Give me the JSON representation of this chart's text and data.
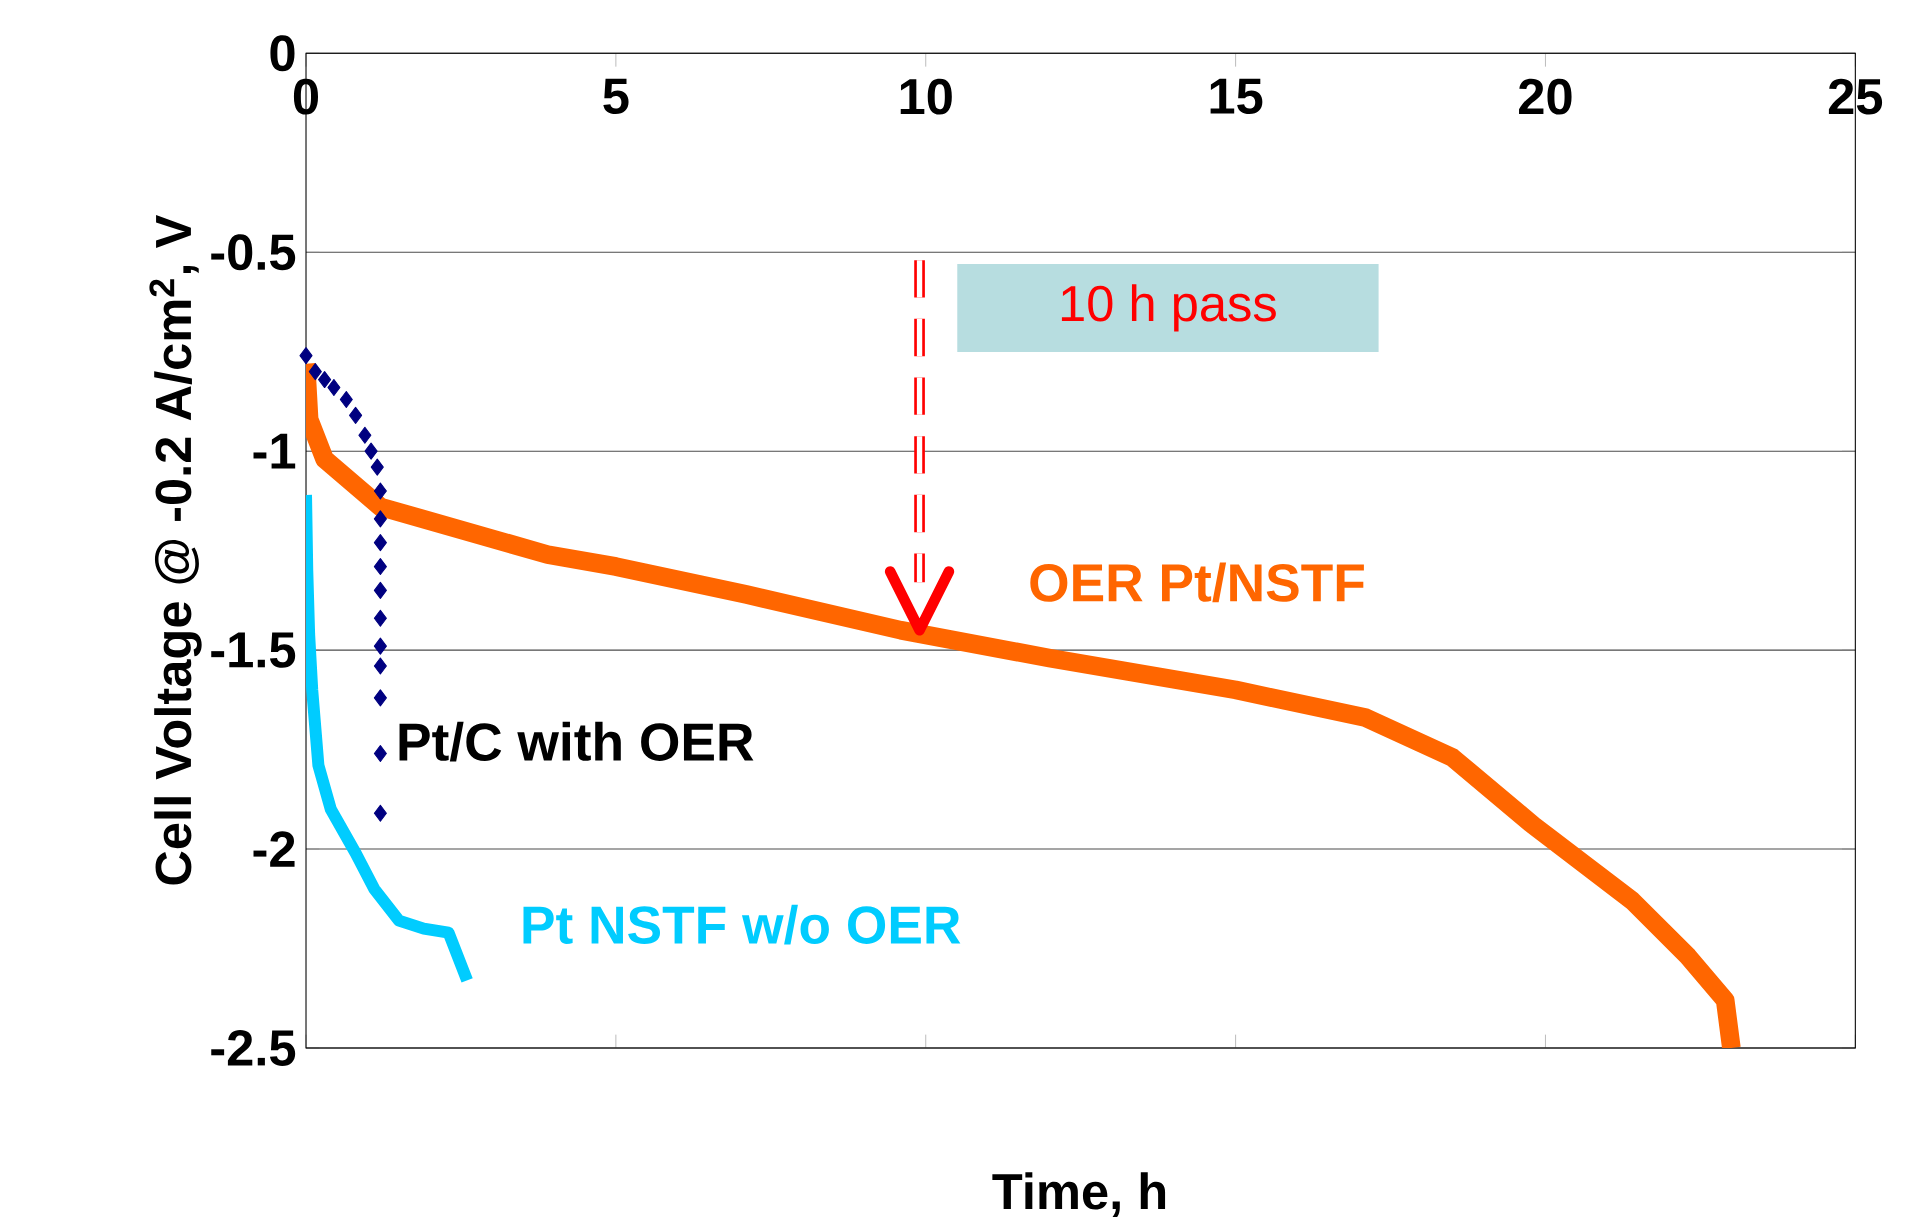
{
  "chart_data": {
    "type": "line",
    "ylabel": "Cell Voltage @ -0.2 A/cm$^{2}$, V",
    "xlabel": "Time, h",
    "xlim": [
      0,
      25
    ],
    "xticks": [
      0,
      5,
      10,
      15,
      20,
      25
    ],
    "ylim": [
      -2.5,
      0
    ],
    "yticks": [
      -2.5,
      -2,
      -1.5,
      -1,
      -0.5,
      0
    ],
    "grid": "y",
    "legend": false,
    "annotations": [
      "10 h pass"
    ],
    "series": [
      {
        "name": "OER Pt/NSTF",
        "type": "line",
        "color": "#ff6600",
        "marker": "none",
        "line_style": "solid",
        "x": [
          0,
          0.05,
          0.3,
          1.2,
          3.9,
          5,
          7.1,
          9.6,
          12,
          15,
          17.1,
          18.5,
          19.8,
          21.4,
          22.3,
          22.9,
          23.0
        ],
        "values": [
          -0.78,
          -0.92,
          -1.02,
          -1.14,
          -1.26,
          -1.29,
          -1.36,
          -1.45,
          -1.52,
          -1.6,
          -1.67,
          -1.77,
          -1.94,
          -2.13,
          -2.27,
          -2.38,
          -2.5
        ]
      },
      {
        "name": "Pt/C with OER",
        "type": "scatter",
        "color": "#000080",
        "marker": "diamond",
        "x": [
          0,
          0.15,
          0.3,
          0.45,
          0.65,
          0.8,
          0.95,
          1.05,
          1.15,
          1.2,
          1.2,
          1.2,
          1.2,
          1.2,
          1.2,
          1.2,
          1.2,
          1.2,
          1.2,
          1.2
        ],
        "values": [
          -0.76,
          -0.8,
          -0.82,
          -0.84,
          -0.87,
          -0.91,
          -0.96,
          -1.0,
          -1.04,
          -1.1,
          -1.17,
          -1.23,
          -1.29,
          -1.35,
          -1.42,
          -1.49,
          -1.54,
          -1.62,
          -1.76,
          -1.91
        ]
      },
      {
        "name": "Pt NSTF w/o OER",
        "type": "line",
        "color": "#00ccff",
        "marker": "none",
        "line_style": "solid",
        "x": [
          0,
          0.02,
          0.05,
          0.1,
          0.2,
          0.4,
          0.8,
          1.1,
          1.5,
          1.9,
          2.3,
          2.6
        ],
        "values": [
          -1.11,
          -1.3,
          -1.46,
          -1.6,
          -1.79,
          -1.9,
          -2.01,
          -2.1,
          -2.18,
          -2.2,
          -2.21,
          -2.33
        ]
      }
    ]
  }
}
